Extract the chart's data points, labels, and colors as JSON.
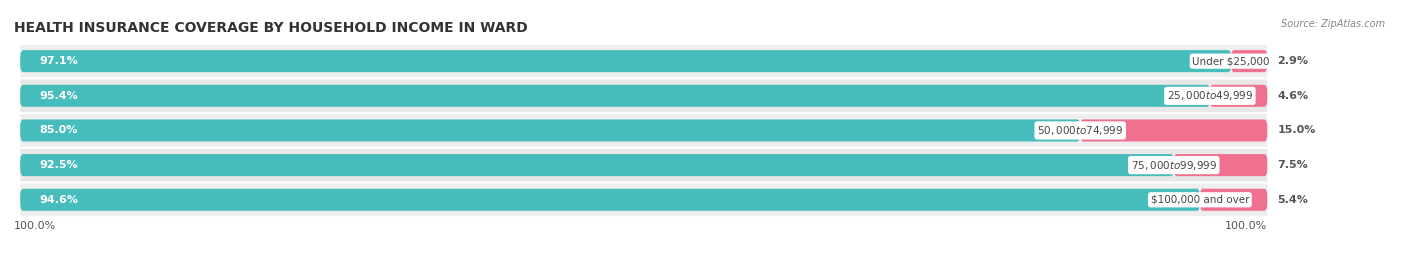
{
  "title": "HEALTH INSURANCE COVERAGE BY HOUSEHOLD INCOME IN WARD",
  "source": "Source: ZipAtlas.com",
  "categories": [
    "Under $25,000",
    "$25,000 to $49,999",
    "$50,000 to $74,999",
    "$75,000 to $99,999",
    "$100,000 and over"
  ],
  "with_coverage": [
    97.1,
    95.4,
    85.0,
    92.5,
    94.6
  ],
  "without_coverage": [
    2.9,
    4.6,
    15.0,
    7.5,
    5.4
  ],
  "color_with": "#47BCBC",
  "color_without": "#F07090",
  "row_bg_even": "#EEEEEE",
  "row_bg_odd": "#E8E8E8",
  "label_color_with": "#FFFFFF",
  "category_label_color": "#444444",
  "without_label_color": "#555555",
  "title_fontsize": 10,
  "bar_height": 0.62,
  "x_axis_label": "100.0%"
}
